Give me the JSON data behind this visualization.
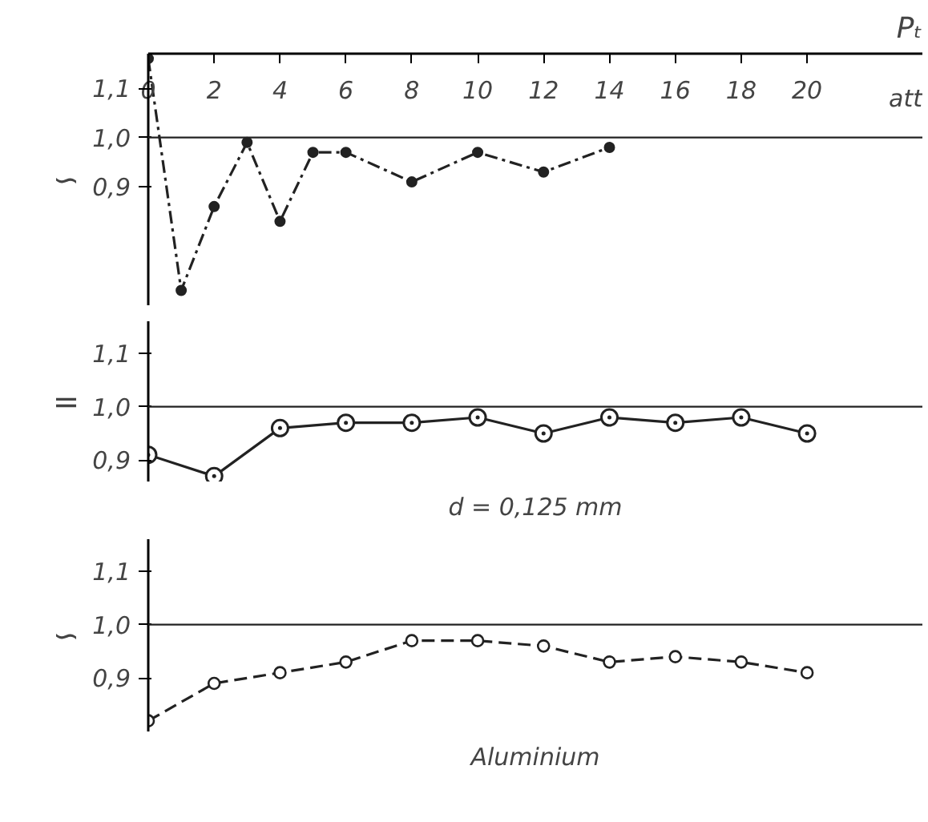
{
  "chart_data": [
    {
      "type": "line",
      "xlabel": "Pₜ",
      "annotations": [
        "att"
      ],
      "ylabel": "∽",
      "xlim": [
        0,
        23.5
      ],
      "xticks": [
        0,
        2,
        4,
        6,
        8,
        10,
        12,
        14,
        16,
        18,
        20
      ],
      "ylim": [
        0.66,
        1.17
      ],
      "yticks": [
        {
          "value": 0.9,
          "label": "0,9"
        },
        {
          "value": 1.0,
          "label": "1,0"
        },
        {
          "value": 1.1,
          "label": "1,1"
        }
      ],
      "x": [
        0,
        1,
        2,
        3,
        4,
        5,
        6,
        8,
        10,
        12,
        14
      ],
      "series": [
        {
          "color": "#222222",
          "values": [
            1.16,
            0.69,
            0.86,
            0.99,
            0.83,
            0.97,
            0.97,
            0.91,
            0.97,
            0.93,
            0.98
          ]
        }
      ],
      "marker": "circle",
      "line_style": "dashdot",
      "grid": false,
      "ref_lines": [
        {
          "axis": "y",
          "value": 1.0,
          "label": null,
          "color": "#222222"
        }
      ]
    },
    {
      "type": "line",
      "ylabel": "=",
      "annotations": [
        "d = 0,125 mm"
      ],
      "tick_labels": "y",
      "xlim": [
        0,
        23.5
      ],
      "xticks": [
        0,
        2,
        4,
        6,
        8,
        10,
        12,
        14,
        16,
        18,
        20
      ],
      "ylim": [
        0.86,
        1.16
      ],
      "yticks": [
        {
          "value": 0.9,
          "label": "0,9"
        },
        {
          "value": 1.0,
          "label": "1,0"
        },
        {
          "value": 1.1,
          "label": "1,1"
        }
      ],
      "x": [
        0,
        2,
        4,
        6,
        8,
        10,
        12,
        14,
        16,
        18,
        20
      ],
      "series": [
        {
          "color": "#222222",
          "values": [
            0.91,
            0.87,
            0.96,
            0.97,
            0.97,
            0.98,
            0.95,
            0.98,
            0.97,
            0.98,
            0.95
          ]
        }
      ],
      "marker": "circle_dot",
      "line_style": "solid",
      "grid": false,
      "ref_lines": [
        {
          "axis": "y",
          "value": 1.0,
          "label": null,
          "color": "#222222"
        }
      ]
    },
    {
      "type": "line",
      "ylabel": "∽",
      "annotations": [
        "Aluminium"
      ],
      "tick_labels": "y",
      "xlim": [
        0,
        23.5
      ],
      "xticks": [
        0,
        2,
        4,
        6,
        8,
        10,
        12,
        14,
        16,
        18,
        20
      ],
      "ylim": [
        0.8,
        1.16
      ],
      "yticks": [
        {
          "value": 0.9,
          "label": "0,9"
        },
        {
          "value": 1.0,
          "label": "1,0"
        },
        {
          "value": 1.1,
          "label": "1,1"
        }
      ],
      "x": [
        0,
        2,
        4,
        6,
        8,
        10,
        12,
        14,
        16,
        18,
        20
      ],
      "series": [
        {
          "color": "#222222",
          "values": [
            0.82,
            0.89,
            0.91,
            0.93,
            0.97,
            0.97,
            0.96,
            0.93,
            0.94,
            0.93,
            0.91
          ]
        }
      ],
      "marker": "circle_open",
      "line_style": "dashed",
      "grid": false,
      "ref_lines": [
        {
          "axis": "y",
          "value": 1.0,
          "label": null,
          "color": "#222222"
        }
      ]
    }
  ]
}
